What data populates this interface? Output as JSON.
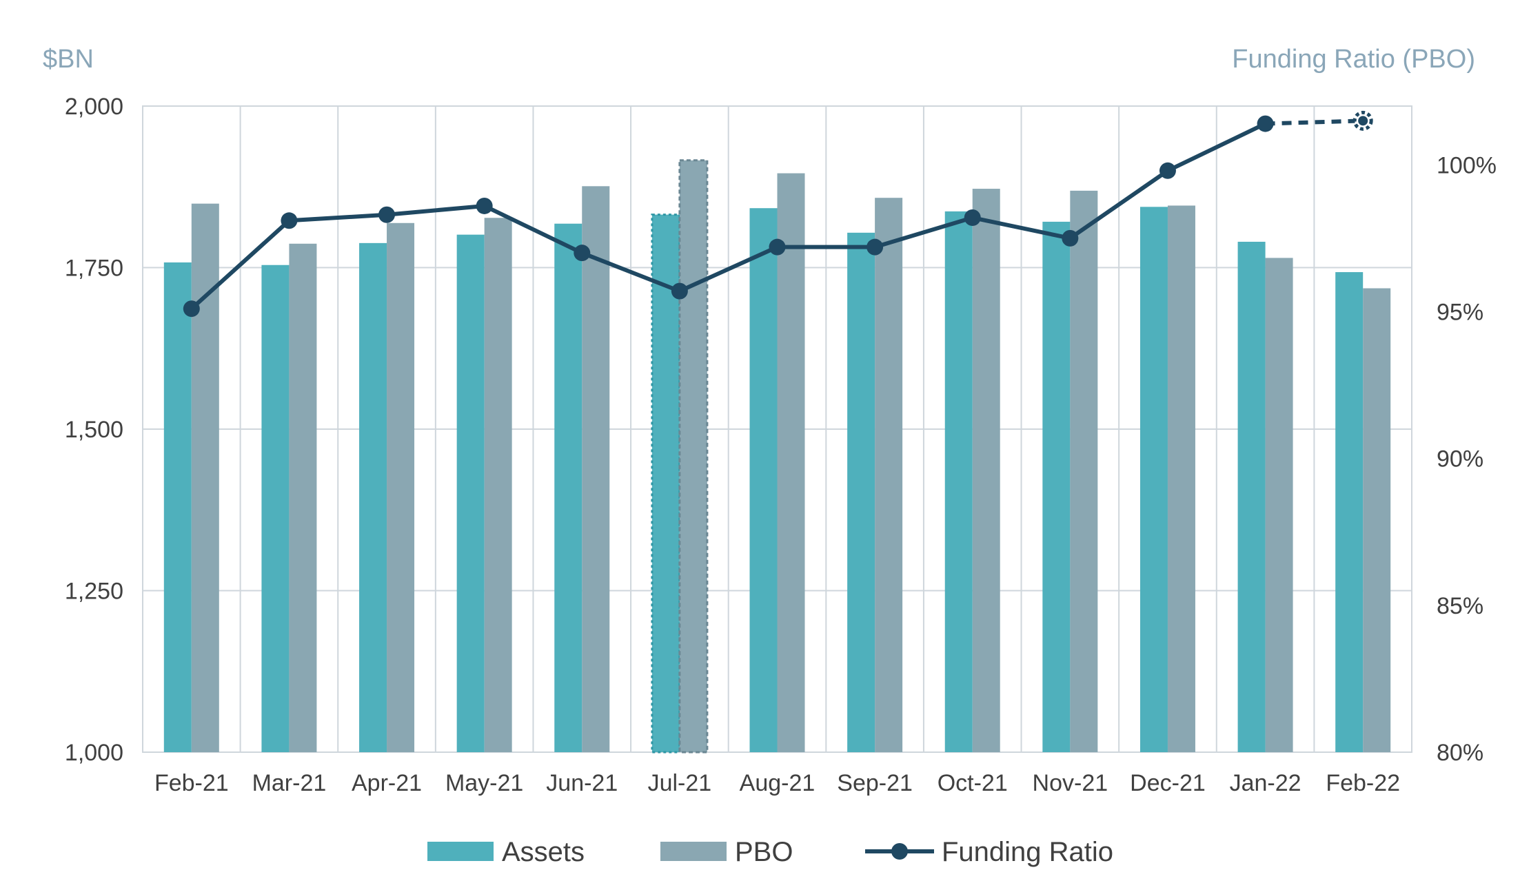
{
  "chart_data": {
    "type": "bar",
    "categories": [
      "Feb-21",
      "Mar-21",
      "Apr-21",
      "May-21",
      "Jun-21",
      "Jul-21",
      "Aug-21",
      "Sep-21",
      "Oct-21",
      "Nov-21",
      "Dec-21",
      "Jan-22",
      "Feb-22"
    ],
    "left_axis": {
      "label": "$BN",
      "ylim": [
        1000,
        2000
      ],
      "ticks": [
        1000,
        1250,
        1500,
        1750,
        2000
      ],
      "tick_labels": [
        "1,000",
        "1,250",
        "1,500",
        "1,750",
        "2,000"
      ]
    },
    "right_axis": {
      "label": "Funding Ratio (PBO)",
      "ylim": [
        80,
        102
      ],
      "ticks": [
        80,
        85,
        90,
        95,
        100
      ],
      "tick_labels": [
        "80%",
        "85%",
        "90%",
        "95%",
        "100%"
      ]
    },
    "series": [
      {
        "name": "Assets",
        "type": "bar",
        "axis": "left",
        "color": "#4fb0bc",
        "values": [
          1758,
          1754,
          1788,
          1801,
          1818,
          1832,
          1842,
          1804,
          1837,
          1821,
          1844,
          1790,
          1743
        ]
      },
      {
        "name": "PBO",
        "type": "bar",
        "axis": "left",
        "color": "#8aa7b2",
        "values": [
          1849,
          1787,
          1819,
          1827,
          1876,
          1916,
          1896,
          1858,
          1872,
          1869,
          1846,
          1765,
          1718
        ]
      },
      {
        "name": "Funding Ratio",
        "type": "line",
        "axis": "right",
        "color": "#1f4862",
        "values": [
          95.1,
          98.1,
          98.3,
          98.6,
          97.0,
          95.7,
          97.2,
          97.2,
          98.2,
          97.5,
          99.8,
          101.4,
          101.5
        ]
      }
    ],
    "highlighted_category": "Jul-21",
    "dashed_line_from_index": 11,
    "grid": true,
    "legend_position": "bottom"
  }
}
